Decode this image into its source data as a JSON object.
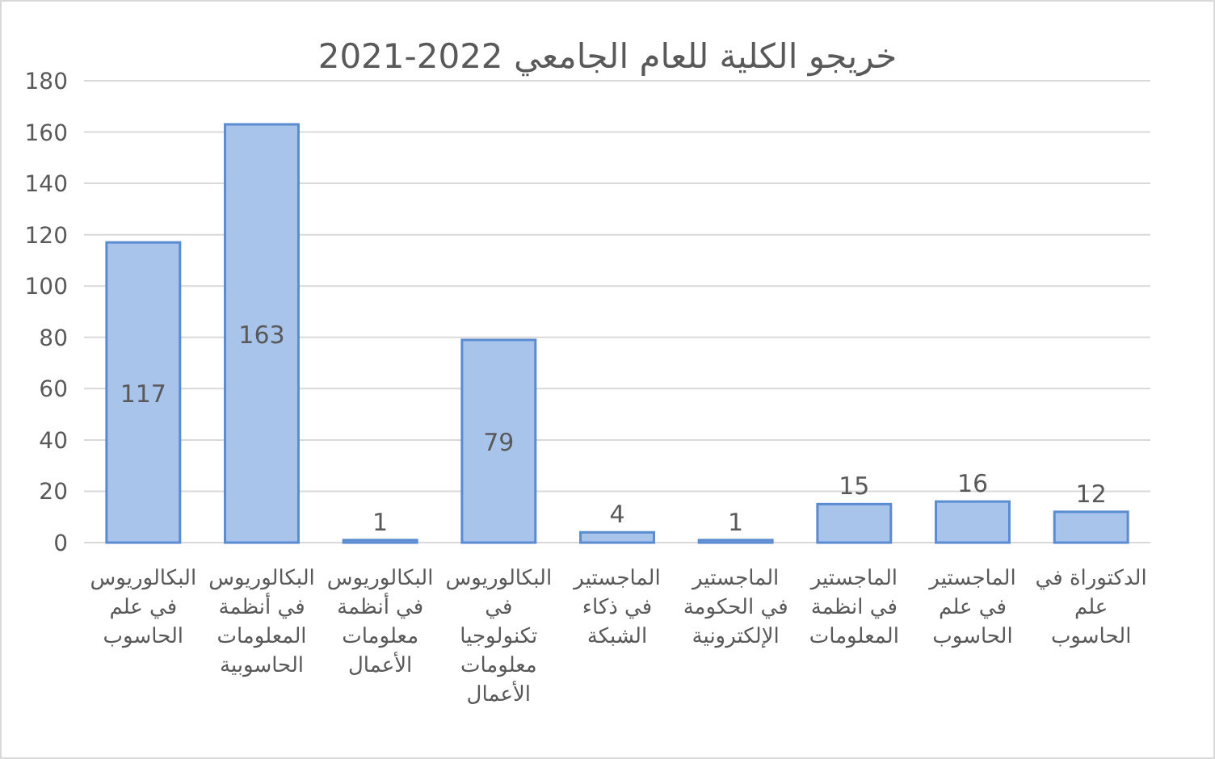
{
  "chart_data": {
    "type": "bar",
    "title": "خريجو الكلية للعام الجامعي 2021-2022",
    "categories": [
      "البكالوريوس\nفي علم\nالحاسوب",
      "البكالوريوس\nفي أنظمة\nالمعلومات\nالحاسوبية",
      "البكالوريوس\nفي أنظمة\nمعلومات\nالأعمال",
      "البكالوريوس\nفي\nتكنولوجيا\nمعلومات\nالأعمال",
      "الماجستير\nفي ذكاء\nالشبكة",
      "الماجستير\nفي الحكومة\nالإلكترونية",
      "الماجستير\nفي انظمة\nالمعلومات",
      "الماجستير\nفي علم\nالحاسوب",
      "الدكتوراة في\nعلم\nالحاسوب"
    ],
    "values": [
      117,
      163,
      1,
      79,
      4,
      1,
      15,
      16,
      12
    ],
    "color": "#a9c4eb",
    "ylim": [
      0,
      180
    ],
    "yticks": [
      0,
      20,
      40,
      60,
      80,
      100,
      120,
      140,
      160,
      180
    ],
    "grid": "y",
    "data_labels": true
  }
}
